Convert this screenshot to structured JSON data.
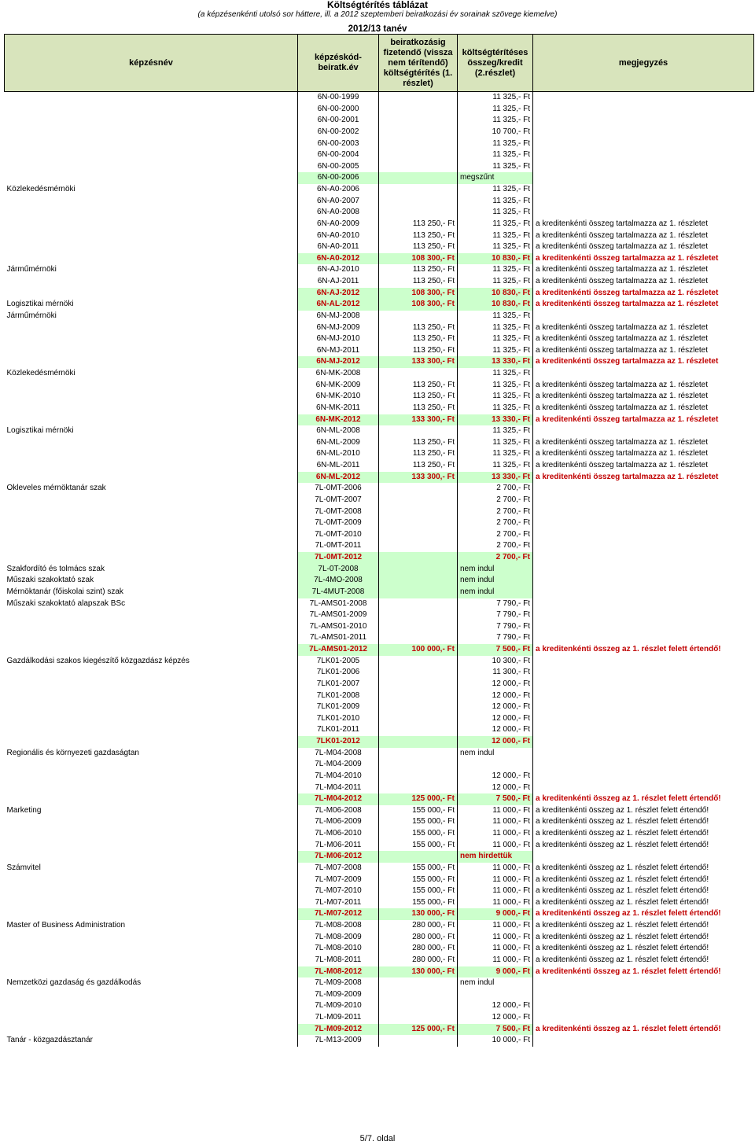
{
  "title": "Költségtérítés táblázat",
  "subtitle": "(a képzésenkénti utolsó sor háttere, ill. a 2012 szeptemberi beiratkozási év sorainak szövege kiemelve)",
  "year": "2012/13 tanév",
  "headers": {
    "program": "képzésnév",
    "code": "képzéskód-beiratk.év",
    "first": "beiratkozásig fizetendő (vissza nem térítendő) költségtérítés (1. részlet)",
    "second": "költségtérítéses összeg/kredit (2.részlet)",
    "note": "megjegyzés"
  },
  "rows": [
    {
      "program": "",
      "code": "6N-00-1999",
      "first": "",
      "second": "11 325,- Ft",
      "note": ""
    },
    {
      "program": "",
      "code": "6N-00-2000",
      "first": "",
      "second": "11 325,- Ft",
      "note": ""
    },
    {
      "program": "",
      "code": "6N-00-2001",
      "first": "",
      "second": "11 325,- Ft",
      "note": ""
    },
    {
      "program": "",
      "code": "6N-00-2002",
      "first": "",
      "second": "10 700,- Ft",
      "note": ""
    },
    {
      "program": "",
      "code": "6N-00-2003",
      "first": "",
      "second": "11 325,- Ft",
      "note": ""
    },
    {
      "program": "",
      "code": "6N-00-2004",
      "first": "",
      "second": "11 325,- Ft",
      "note": ""
    },
    {
      "program": "",
      "code": "6N-00-2005",
      "first": "",
      "second": "11 325,- Ft",
      "note": ""
    },
    {
      "program": "",
      "code": "6N-00-2006",
      "first": "",
      "second": "megszűnt",
      "note": "",
      "green": true,
      "secondLeft": true
    },
    {
      "program": "Közlekedésmérnöki",
      "code": "6N-A0-2006",
      "first": "",
      "second": "11 325,- Ft",
      "note": ""
    },
    {
      "program": "",
      "code": "6N-A0-2007",
      "first": "",
      "second": "11 325,- Ft",
      "note": ""
    },
    {
      "program": "",
      "code": "6N-A0-2008",
      "first": "",
      "second": "11 325,- Ft",
      "note": ""
    },
    {
      "program": "",
      "code": "6N-A0-2009",
      "first": "113 250,- Ft",
      "second": "11 325,- Ft",
      "note": "a kreditenkénti összeg tartalmazza az 1. részletet"
    },
    {
      "program": "",
      "code": "6N-A0-2010",
      "first": "113 250,- Ft",
      "second": "11 325,- Ft",
      "note": "a kreditenkénti összeg tartalmazza az 1. részletet"
    },
    {
      "program": "",
      "code": "6N-A0-2011",
      "first": "113 250,- Ft",
      "second": "11 325,- Ft",
      "note": "a kreditenkénti összeg tartalmazza az 1. részletet"
    },
    {
      "program": "",
      "code": "6N-A0-2012",
      "first": "108 300,- Ft",
      "second": "10 830,- Ft",
      "note": "a kreditenkénti összeg tartalmazza az 1. részletet",
      "hl": true,
      "green": true
    },
    {
      "program": "Járműmérnöki",
      "code": "6N-AJ-2010",
      "first": "113 250,- Ft",
      "second": "11 325,- Ft",
      "note": "a kreditenkénti összeg tartalmazza az 1. részletet"
    },
    {
      "program": "",
      "code": "6N-AJ-2011",
      "first": "113 250,- Ft",
      "second": "11 325,- Ft",
      "note": "a kreditenkénti összeg tartalmazza az 1. részletet"
    },
    {
      "program": "",
      "code": "6N-AJ-2012",
      "first": "108 300,- Ft",
      "second": "10 830,- Ft",
      "note": "a kreditenkénti összeg tartalmazza az 1. részletet",
      "hl": true,
      "green": true
    },
    {
      "program": "Logisztikai mérnöki",
      "code": "6N-AL-2012",
      "first": "108 300,- Ft",
      "second": "10 830,- Ft",
      "note": "a kreditenkénti összeg tartalmazza az 1. részletet",
      "hl": true,
      "green": true
    },
    {
      "program": "Járműmérnöki",
      "code": "6N-MJ-2008",
      "first": "",
      "second": "11 325,- Ft",
      "note": ""
    },
    {
      "program": "",
      "code": "6N-MJ-2009",
      "first": "113 250,- Ft",
      "second": "11 325,- Ft",
      "note": "a kreditenkénti összeg tartalmazza az 1. részletet"
    },
    {
      "program": "",
      "code": "6N-MJ-2010",
      "first": "113 250,- Ft",
      "second": "11 325,- Ft",
      "note": "a kreditenkénti összeg tartalmazza az 1. részletet"
    },
    {
      "program": "",
      "code": "6N-MJ-2011",
      "first": "113 250,- Ft",
      "second": "11 325,- Ft",
      "note": "a kreditenkénti összeg tartalmazza az 1. részletet"
    },
    {
      "program": "",
      "code": "6N-MJ-2012",
      "first": "133 300,- Ft",
      "second": "13 330,- Ft",
      "note": "a kreditenkénti összeg tartalmazza az 1. részletet",
      "hl": true,
      "green": true
    },
    {
      "program": "Közlekedésmérnöki",
      "code": "6N-MK-2008",
      "first": "",
      "second": "11 325,- Ft",
      "note": ""
    },
    {
      "program": "",
      "code": "6N-MK-2009",
      "first": "113 250,- Ft",
      "second": "11 325,- Ft",
      "note": "a kreditenkénti összeg tartalmazza az 1. részletet"
    },
    {
      "program": "",
      "code": "6N-MK-2010",
      "first": "113 250,- Ft",
      "second": "11 325,- Ft",
      "note": "a kreditenkénti összeg tartalmazza az 1. részletet"
    },
    {
      "program": "",
      "code": "6N-MK-2011",
      "first": "113 250,- Ft",
      "second": "11 325,- Ft",
      "note": "a kreditenkénti összeg tartalmazza az 1. részletet"
    },
    {
      "program": "",
      "code": "6N-MK-2012",
      "first": "133 300,- Ft",
      "second": "13 330,- Ft",
      "note": "a kreditenkénti összeg tartalmazza az 1. részletet",
      "hl": true,
      "green": true
    },
    {
      "program": "Logisztikai mérnöki",
      "code": "6N-ML-2008",
      "first": "",
      "second": "11 325,- Ft",
      "note": ""
    },
    {
      "program": "",
      "code": "6N-ML-2009",
      "first": "113 250,- Ft",
      "second": "11 325,- Ft",
      "note": "a kreditenkénti összeg tartalmazza az 1. részletet"
    },
    {
      "program": "",
      "code": "6N-ML-2010",
      "first": "113 250,- Ft",
      "second": "11 325,- Ft",
      "note": "a kreditenkénti összeg tartalmazza az 1. részletet"
    },
    {
      "program": "",
      "code": "6N-ML-2011",
      "first": "113 250,- Ft",
      "second": "11 325,- Ft",
      "note": "a kreditenkénti összeg tartalmazza az 1. részletet"
    },
    {
      "program": "",
      "code": "6N-ML-2012",
      "first": "133 300,- Ft",
      "second": "13 330,- Ft",
      "note": "a kreditenkénti összeg tartalmazza az 1. részletet",
      "hl": true,
      "green": true
    },
    {
      "program": "Okleveles mérnöktanár szak",
      "code": "7L-0MT-2006",
      "first": "",
      "second": "2 700,- Ft",
      "note": ""
    },
    {
      "program": "",
      "code": "7L-0MT-2007",
      "first": "",
      "second": "2 700,- Ft",
      "note": ""
    },
    {
      "program": "",
      "code": "7L-0MT-2008",
      "first": "",
      "second": "2 700,- Ft",
      "note": ""
    },
    {
      "program": "",
      "code": "7L-0MT-2009",
      "first": "",
      "second": "2 700,- Ft",
      "note": ""
    },
    {
      "program": "",
      "code": "7L-0MT-2010",
      "first": "",
      "second": "2 700,- Ft",
      "note": ""
    },
    {
      "program": "",
      "code": "7L-0MT-2011",
      "first": "",
      "second": "2 700,- Ft",
      "note": ""
    },
    {
      "program": "",
      "code": "7L-0MT-2012",
      "first": "",
      "second": "2 700,- Ft",
      "note": "",
      "hl": true,
      "green": true
    },
    {
      "program": "Szakfordító és tolmács szak",
      "code": "7L-0T-2008",
      "first": "",
      "second": "nem indul",
      "note": "",
      "green": true,
      "secondLeft": true
    },
    {
      "program": "Műszaki szakoktató szak",
      "code": "7L-4MO-2008",
      "first": "",
      "second": "nem indul",
      "note": "",
      "green": true,
      "secondLeft": true
    },
    {
      "program": "Mérnöktanár (főiskolai szint) szak",
      "code": "7L-4MUT-2008",
      "first": "",
      "second": "nem indul",
      "note": "",
      "green": true,
      "secondLeft": true
    },
    {
      "program": "Műszaki szakoktató alapszak BSc",
      "code": "7L-AMS01-2008",
      "first": "",
      "second": "7 790,- Ft",
      "note": ""
    },
    {
      "program": "",
      "code": "7L-AMS01-2009",
      "first": "",
      "second": "7 790,- Ft",
      "note": ""
    },
    {
      "program": "",
      "code": "7L-AMS01-2010",
      "first": "",
      "second": "7 790,- Ft",
      "note": ""
    },
    {
      "program": "",
      "code": "7L-AMS01-2011",
      "first": "",
      "second": "7 790,- Ft",
      "note": ""
    },
    {
      "program": "",
      "code": "7L-AMS01-2012",
      "first": "100 000,- Ft",
      "second": "7 500,- Ft",
      "note": "a kreditenkénti összeg az 1. részlet felett értendő!",
      "hl": true,
      "green": true
    },
    {
      "program": "Gazdálkodási szakos kiegészítő közgazdász képzés",
      "code": "7LK01-2005",
      "first": "",
      "second": "10 300,- Ft",
      "note": ""
    },
    {
      "program": "",
      "code": "7LK01-2006",
      "first": "",
      "second": "11 300,- Ft",
      "note": ""
    },
    {
      "program": "",
      "code": "7LK01-2007",
      "first": "",
      "second": "12 000,- Ft",
      "note": ""
    },
    {
      "program": "",
      "code": "7LK01-2008",
      "first": "",
      "second": "12 000,- Ft",
      "note": ""
    },
    {
      "program": "",
      "code": "7LK01-2009",
      "first": "",
      "second": "12 000,- Ft",
      "note": ""
    },
    {
      "program": "",
      "code": "7LK01-2010",
      "first": "",
      "second": "12 000,- Ft",
      "note": ""
    },
    {
      "program": "",
      "code": "7LK01-2011",
      "first": "",
      "second": "12 000,- Ft",
      "note": ""
    },
    {
      "program": "",
      "code": "7LK01-2012",
      "first": "",
      "second": "12 000,- Ft",
      "note": "",
      "hl": true,
      "green": true
    },
    {
      "program": "Regionális és környezeti gazdaságtan",
      "code": "7L-M04-2008",
      "first": "",
      "second": "nem indul",
      "note": "",
      "secondLeft": true
    },
    {
      "program": "",
      "code": "7L-M04-2009",
      "first": "",
      "second": "",
      "note": ""
    },
    {
      "program": "",
      "code": "7L-M04-2010",
      "first": "",
      "second": "12 000,- Ft",
      "note": ""
    },
    {
      "program": "",
      "code": "7L-M04-2011",
      "first": "",
      "second": "12 000,- Ft",
      "note": ""
    },
    {
      "program": "",
      "code": "7L-M04-2012",
      "first": "125 000,- Ft",
      "second": "7 500,- Ft",
      "note": "a kreditenkénti összeg az 1. részlet felett értendő!",
      "hl": true,
      "green": true
    },
    {
      "program": "Marketing",
      "code": "7L-M06-2008",
      "first": "155 000,- Ft",
      "second": "11 000,- Ft",
      "note": "a kreditenkénti összeg az 1. részlet felett értendő!"
    },
    {
      "program": "",
      "code": "7L-M06-2009",
      "first": "155 000,- Ft",
      "second": "11 000,- Ft",
      "note": "a kreditenkénti összeg az 1. részlet felett értendő!"
    },
    {
      "program": "",
      "code": "7L-M06-2010",
      "first": "155 000,- Ft",
      "second": "11 000,- Ft",
      "note": "a kreditenkénti összeg az 1. részlet felett értendő!"
    },
    {
      "program": "",
      "code": "7L-M06-2011",
      "first": "155 000,- Ft",
      "second": "11 000,- Ft",
      "note": "a kreditenkénti összeg az 1. részlet felett értendő!"
    },
    {
      "program": "",
      "code": "7L-M06-2012",
      "first": "",
      "second": "nem hirdettük",
      "note": "",
      "hl": true,
      "green": true,
      "secondLeft": true
    },
    {
      "program": "Számvitel",
      "code": "7L-M07-2008",
      "first": "155 000,- Ft",
      "second": "11 000,- Ft",
      "note": "a kreditenkénti összeg az 1. részlet felett értendő!"
    },
    {
      "program": "",
      "code": "7L-M07-2009",
      "first": "155 000,- Ft",
      "second": "11 000,- Ft",
      "note": "a kreditenkénti összeg az 1. részlet felett értendő!"
    },
    {
      "program": "",
      "code": "7L-M07-2010",
      "first": "155 000,- Ft",
      "second": "11 000,- Ft",
      "note": "a kreditenkénti összeg az 1. részlet felett értendő!"
    },
    {
      "program": "",
      "code": "7L-M07-2011",
      "first": "155 000,- Ft",
      "second": "11 000,- Ft",
      "note": "a kreditenkénti összeg az 1. részlet felett értendő!"
    },
    {
      "program": "",
      "code": "7L-M07-2012",
      "first": "130 000,- Ft",
      "second": "9 000,- Ft",
      "note": "a kreditenkénti összeg az 1. részlet felett értendő!",
      "hl": true,
      "green": true
    },
    {
      "program": "Master of Business Administration",
      "code": "7L-M08-2008",
      "first": "280 000,- Ft",
      "second": "11 000,- Ft",
      "note": "a kreditenkénti összeg az 1. részlet felett értendő!"
    },
    {
      "program": "",
      "code": "7L-M08-2009",
      "first": "280 000,- Ft",
      "second": "11 000,- Ft",
      "note": "a kreditenkénti összeg az 1. részlet felett értendő!"
    },
    {
      "program": "",
      "code": "7L-M08-2010",
      "first": "280 000,- Ft",
      "second": "11 000,- Ft",
      "note": "a kreditenkénti összeg az 1. részlet felett értendő!"
    },
    {
      "program": "",
      "code": "7L-M08-2011",
      "first": "280 000,- Ft",
      "second": "11 000,- Ft",
      "note": "a kreditenkénti összeg az 1. részlet felett értendő!"
    },
    {
      "program": "",
      "code": "7L-M08-2012",
      "first": "130 000,- Ft",
      "second": "9 000,- Ft",
      "note": "a kreditenkénti összeg az 1. részlet felett értendő!",
      "hl": true,
      "green": true
    },
    {
      "program": "Nemzetközi gazdaság és gazdálkodás",
      "code": "7L-M09-2008",
      "first": "",
      "second": "nem indul",
      "note": "",
      "secondLeft": true
    },
    {
      "program": "",
      "code": "7L-M09-2009",
      "first": "",
      "second": "",
      "note": ""
    },
    {
      "program": "",
      "code": "7L-M09-2010",
      "first": "",
      "second": "12 000,- Ft",
      "note": ""
    },
    {
      "program": "",
      "code": "7L-M09-2011",
      "first": "",
      "second": "12 000,- Ft",
      "note": ""
    },
    {
      "program": "",
      "code": "7L-M09-2012",
      "first": "125 000,- Ft",
      "second": "7 500,- Ft",
      "note": "a kreditenkénti összeg az 1. részlet felett értendő!",
      "hl": true,
      "green": true
    },
    {
      "program": "Tanár - közgazdásztanár",
      "code": "7L-M13-2009",
      "first": "",
      "second": "10 000,- Ft",
      "note": ""
    }
  ],
  "page_number": "5/7. oldal"
}
